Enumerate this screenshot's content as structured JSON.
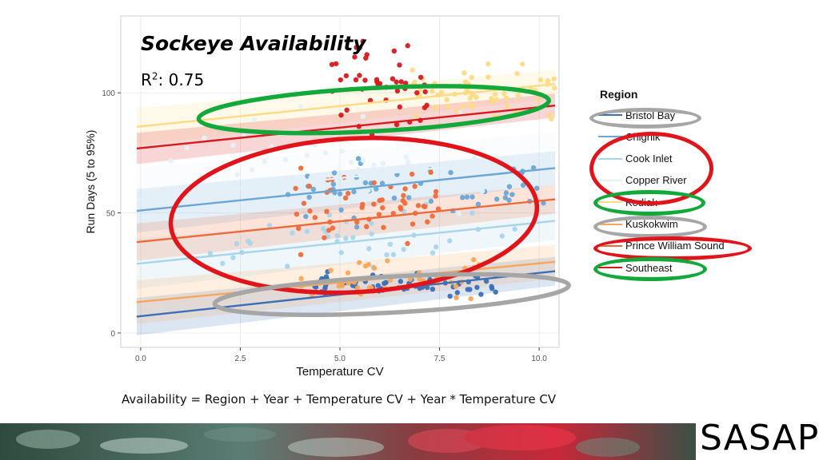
{
  "slide": {
    "title": "Sockeye Availability",
    "r2_label": "R",
    "r2_sup": "2",
    "r2_value": ": 0.75",
    "formula": "Availability = Region + Year + Temperature CV + Year * Temperature CV",
    "logo_text": "SASAP"
  },
  "chart_data": {
    "type": "scatter",
    "xlabel": "Temperature CV",
    "ylabel": "Run Days (5 to 95%)",
    "xlim": [
      -0.5,
      10.5
    ],
    "ylim": [
      -6,
      132
    ],
    "xticks": [
      0.0,
      2.5,
      5.0,
      7.5,
      10.0
    ],
    "xtick_labels": [
      "0.0",
      "2.5",
      "5.0",
      "7.5",
      "10.0"
    ],
    "yticks": [
      0,
      50,
      100
    ],
    "ytick_labels": [
      "0",
      "50",
      "100"
    ],
    "grid": true,
    "legend": {
      "title": "Region",
      "position": "right"
    },
    "series": [
      {
        "name": "Bristol Bay",
        "color": "#3b6fb6",
        "fit": [
          7,
          25
        ],
        "band": 6,
        "x_range": [
          4.2,
          9.0
        ],
        "y_center": 20,
        "y_spread": 5,
        "n": 60,
        "seed": 11
      },
      {
        "name": "Chignik",
        "color": "#6aa6d6",
        "fit": [
          51,
          68
        ],
        "band": 7,
        "x_range": [
          3.5,
          10.3
        ],
        "y_center": 60,
        "y_spread": 16,
        "n": 50,
        "seed": 23
      },
      {
        "name": "Cook Inlet",
        "color": "#a9d5ea",
        "fit": [
          29,
          46
        ],
        "band": 8,
        "x_range": [
          1.5,
          9.5
        ],
        "y_center": 38,
        "y_spread": 14,
        "n": 40,
        "seed": 37
      },
      {
        "name": "Copper River",
        "color": "#e4f1f8",
        "fit": [
          56,
          73
        ],
        "band": 10,
        "x_range": [
          0,
          10
        ],
        "y_center": 70,
        "y_spread": 25,
        "n": 45,
        "seed": 41
      },
      {
        "name": "Kodiak",
        "color": "#fddb85",
        "fit": [
          86,
          103
        ],
        "band": 6,
        "x_range": [
          6.8,
          10.4
        ],
        "y_center": 100,
        "y_spread": 13,
        "n": 60,
        "seed": 53
      },
      {
        "name": "Kuskokwim",
        "color": "#f9a65a",
        "fit": [
          13,
          29
        ],
        "band": 7,
        "x_range": [
          3.8,
          8.5
        ],
        "y_center": 22,
        "y_spread": 10,
        "n": 40,
        "seed": 61
      },
      {
        "name": "Prince William Sound",
        "color": "#ef6a3a",
        "fit": [
          38,
          55
        ],
        "band": 6,
        "x_range": [
          3.8,
          7.5
        ],
        "y_center": 55,
        "y_spread": 17,
        "n": 55,
        "seed": 71
      },
      {
        "name": "Southeast",
        "color": "#d7191c",
        "fit": [
          77,
          94
        ],
        "band": 5,
        "x_range": [
          4.8,
          7.2
        ],
        "y_center": 105,
        "y_spread": 22,
        "n": 45,
        "seed": 83
      }
    ],
    "highlight_ellipses": [
      {
        "name": "kodiak-southeast",
        "color": "#12a83a",
        "cx": 5.85,
        "cy": 93,
        "rx": 4.4,
        "ry": 9
      },
      {
        "name": "central",
        "color": "#e0141a",
        "cx": 5.35,
        "cy": 49,
        "rx": 4.6,
        "ry": 32
      },
      {
        "name": "bristol-kuskokwim",
        "color": "#a6a6a6",
        "cx": 6.3,
        "cy": 16,
        "rx": 4.45,
        "ry": 7.5
      }
    ],
    "legend_marks": [
      {
        "item": 0,
        "color": "#a6a6a6"
      },
      {
        "item": 1,
        "color": "#e0141a",
        "span": 4
      },
      {
        "item": 4,
        "color": "#12a83a"
      },
      {
        "item": 5,
        "color": "#a6a6a6"
      },
      {
        "item": 6,
        "color": "#e0141a"
      },
      {
        "item": 7,
        "color": "#12a83a"
      }
    ]
  }
}
